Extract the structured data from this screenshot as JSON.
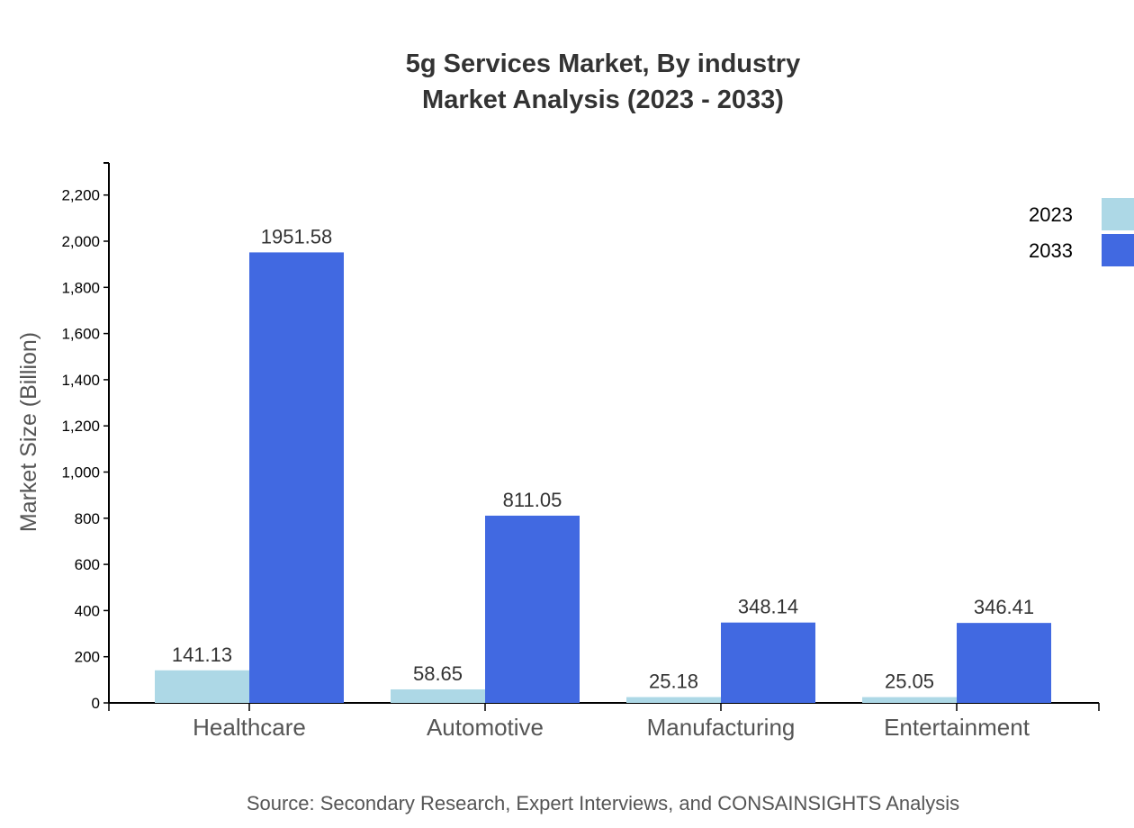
{
  "chart_data": {
    "type": "bar",
    "title": "5g Services Market, By industry",
    "subtitle": "Market Analysis (2023 - 2033)",
    "xlabel": "",
    "ylabel": "Market Size (Billion)",
    "ylim": [
      0,
      2340
    ],
    "yticks": [
      0,
      200,
      400,
      600,
      800,
      1000,
      1200,
      1400,
      1600,
      1800,
      2000,
      2200
    ],
    "ytick_labels": [
      "0",
      "200",
      "400",
      "600",
      "800",
      "1,000",
      "1,200",
      "1,400",
      "1,600",
      "1,800",
      "2,000",
      "2,200"
    ],
    "grid": false,
    "legend_position": "top-right",
    "categories": [
      "Healthcare",
      "Automotive",
      "Manufacturing",
      "Entertainment"
    ],
    "series": [
      {
        "name": "2023",
        "color": "#add8e6",
        "values": [
          141.13,
          58.65,
          25.18,
          25.05
        ],
        "labels": [
          "141.13",
          "58.65",
          "25.18",
          "25.05"
        ]
      },
      {
        "name": "2033",
        "color": "#4169e1",
        "values": [
          1951.58,
          811.05,
          348.14,
          346.41
        ],
        "labels": [
          "1951.58",
          "811.05",
          "348.14",
          "346.41"
        ]
      }
    ],
    "source": "Source: Secondary Research, Expert Interviews, and CONSAINSIGHTS Analysis"
  }
}
